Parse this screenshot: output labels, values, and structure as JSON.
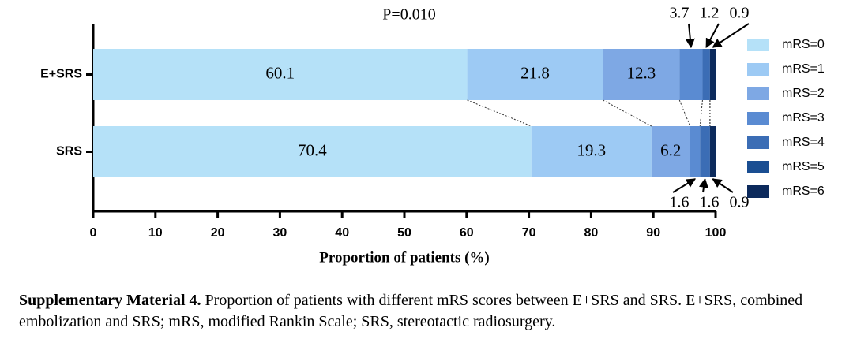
{
  "chart_data": {
    "type": "stacked-bar-horizontal",
    "annotation": "P=0.010",
    "x_label": "Proportion of patients (%)",
    "categories": [
      "E+SRS",
      "SRS"
    ],
    "series": [
      {
        "name": "mRS=0",
        "color": "#b5e1f8",
        "values": [
          60.1,
          70.4
        ]
      },
      {
        "name": "mRS=1",
        "color": "#9dcaf4",
        "values": [
          21.8,
          19.3
        ]
      },
      {
        "name": "mRS=2",
        "color": "#7ea8e4",
        "values": [
          12.3,
          6.2
        ]
      },
      {
        "name": "mRS=3",
        "color": "#5a8bd2",
        "values": [
          3.7,
          1.6
        ]
      },
      {
        "name": "mRS=4",
        "color": "#3b6db5",
        "values": [
          1.2,
          1.6
        ]
      },
      {
        "name": "mRS=5",
        "color": "#1a4e92",
        "values": [
          0,
          0
        ]
      },
      {
        "name": "mRS=6",
        "color": "#0c2a5c",
        "values": [
          0.9,
          0.9
        ]
      }
    ],
    "xlim": [
      0,
      100
    ],
    "xticks": [
      0,
      10,
      20,
      30,
      40,
      50,
      60,
      70,
      80,
      90,
      100
    ],
    "caption": {
      "label": "Supplementary Material 4.",
      "text": "Proportion of patients with different mRS scores between E+SRS and SRS. E+SRS, combined embolization and SRS; mRS, modified Rankin Scale; SRS, stereotactic radiosurgery."
    }
  }
}
